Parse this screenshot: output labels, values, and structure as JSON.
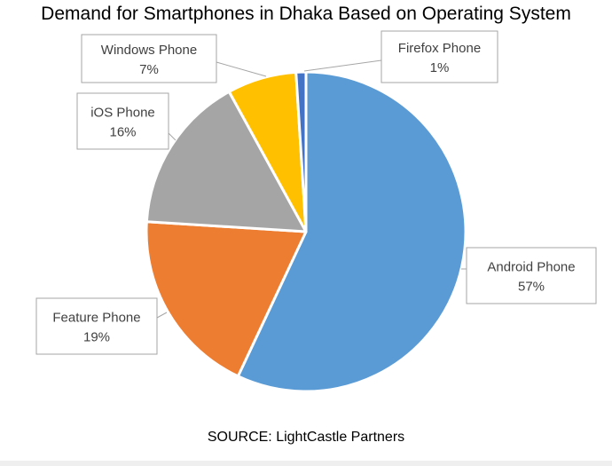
{
  "chart_data": {
    "type": "pie",
    "title": "Demand for Smartphones in Dhaka Based on Operating System",
    "source": "SOURCE: LightCastle Partners",
    "slices": [
      {
        "name": "Android Phone",
        "value": 57,
        "label": "57%",
        "color": "#5b9bd5"
      },
      {
        "name": "Feature Phone",
        "value": 19,
        "label": "19%",
        "color": "#ed7d31"
      },
      {
        "name": "iOS Phone",
        "value": 16,
        "label": "16%",
        "color": "#a5a5a5"
      },
      {
        "name": "Windows Phone",
        "value": 7,
        "label": "7%",
        "color": "#ffc000"
      },
      {
        "name": "Firefox Phone",
        "value": 1,
        "label": "1%",
        "color": "#4472c4"
      }
    ],
    "start_angle_deg": 0,
    "direction": "clockwise",
    "data_labels": "callouts"
  }
}
